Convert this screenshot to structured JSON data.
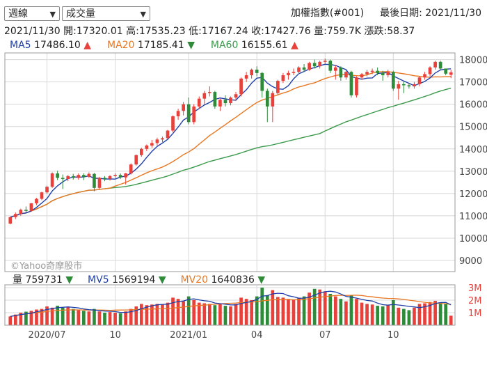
{
  "controls": {
    "period_select": "週線",
    "indicator_select": "成交量"
  },
  "header": {
    "index_name": "加權指數(#001)",
    "last_date_label": "最後日期:",
    "last_date": "2021/11/30"
  },
  "quote": {
    "date": "2021/11/30",
    "open_label": "開:",
    "open": "17320.01",
    "high_label": "高:",
    "high": "17535.23",
    "low_label": "低:",
    "low": "17167.24",
    "close_label": "收:",
    "close": "17427.76",
    "vol_label": "量:",
    "vol": "759.7K",
    "change_label": "漲跌:",
    "change": "58.37"
  },
  "ma_legend": [
    {
      "label": "MA5",
      "value": "17486.10",
      "dir": "▲",
      "color": "#1f3fa8",
      "dir_color": "#e8403a"
    },
    {
      "label": "MA20",
      "value": "17185.41",
      "dir": "▼",
      "color": "#e87722",
      "dir_color": "#2e8b3a"
    },
    {
      "label": "MA60",
      "value": "16155.61",
      "dir": "▲",
      "color": "#3a9a4a",
      "dir_color": "#e8403a"
    }
  ],
  "vol_legend": [
    {
      "label": "量",
      "value": "759731",
      "dir": "▼",
      "color": "#222222",
      "dir_color": "#2e8b3a"
    },
    {
      "label": "MV5",
      "value": "1569194",
      "dir": "▼",
      "color": "#1f3fa8",
      "dir_color": "#2e8b3a"
    },
    {
      "label": "MV20",
      "value": "1640836",
      "dir": "▼",
      "color": "#e87722",
      "dir_color": "#2e8b3a"
    }
  ],
  "watermark": "©Yahoo奇摩股市",
  "colors": {
    "up": "#e8403a",
    "down": "#2e8b3a",
    "ma5": "#1f3fa8",
    "ma20": "#e87722",
    "ma60": "#3a9a4a",
    "grid": "#d8d8d8"
  },
  "chart_data": {
    "type": "candlestick",
    "price_axis": {
      "ticks": [
        9000,
        10000,
        11000,
        12000,
        13000,
        14000,
        15000,
        16000,
        17000,
        18000
      ],
      "range": [
        8500,
        18300
      ]
    },
    "volume_axis": {
      "ticks": [
        1000000,
        2000000,
        3000000
      ],
      "tick_labels": [
        "1M",
        "2M",
        "3M"
      ],
      "range": [
        0,
        3000000
      ]
    },
    "x_labels": [
      "2020/07",
      "10",
      "2021/01",
      "04",
      "07",
      "10"
    ],
    "x_label_week_index": [
      7,
      20,
      34,
      47,
      60,
      73
    ],
    "weeks": [
      {
        "o": 10650,
        "h": 10950,
        "l": 10620,
        "c": 10940,
        "v": 700000
      },
      {
        "o": 10940,
        "h": 11150,
        "l": 10850,
        "c": 11080,
        "v": 850000
      },
      {
        "o": 11080,
        "h": 11320,
        "l": 11000,
        "c": 11270,
        "v": 1000000
      },
      {
        "o": 11270,
        "h": 11420,
        "l": 11150,
        "c": 11220,
        "v": 1080000
      },
      {
        "o": 11220,
        "h": 11580,
        "l": 11180,
        "c": 11560,
        "v": 1150000
      },
      {
        "o": 11560,
        "h": 11800,
        "l": 11480,
        "c": 11760,
        "v": 1250000
      },
      {
        "o": 11760,
        "h": 12080,
        "l": 11700,
        "c": 12050,
        "v": 1300000
      },
      {
        "o": 12050,
        "h": 12350,
        "l": 11980,
        "c": 12300,
        "v": 1500000
      },
      {
        "o": 12300,
        "h": 12950,
        "l": 12250,
        "c": 12900,
        "v": 1400000
      },
      {
        "o": 12900,
        "h": 13020,
        "l": 12600,
        "c": 12700,
        "v": 1550000
      },
      {
        "o": 12700,
        "h": 12850,
        "l": 12200,
        "c": 12650,
        "v": 1400000
      },
      {
        "o": 12650,
        "h": 12830,
        "l": 12550,
        "c": 12780,
        "v": 1450000
      },
      {
        "o": 12780,
        "h": 12880,
        "l": 12620,
        "c": 12700,
        "v": 1300000
      },
      {
        "o": 12700,
        "h": 12900,
        "l": 12620,
        "c": 12830,
        "v": 1200000
      },
      {
        "o": 12830,
        "h": 12900,
        "l": 12600,
        "c": 12750,
        "v": 1150000
      },
      {
        "o": 12750,
        "h": 12950,
        "l": 12700,
        "c": 12880,
        "v": 1100000
      },
      {
        "o": 12880,
        "h": 12920,
        "l": 12100,
        "c": 12250,
        "v": 1300000
      },
      {
        "o": 12250,
        "h": 12750,
        "l": 12180,
        "c": 12700,
        "v": 1100000
      },
      {
        "o": 12700,
        "h": 12780,
        "l": 12550,
        "c": 12660,
        "v": 1000000
      },
      {
        "o": 12660,
        "h": 12820,
        "l": 12580,
        "c": 12780,
        "v": 1050000
      },
      {
        "o": 12780,
        "h": 12900,
        "l": 12700,
        "c": 12830,
        "v": 1000000
      },
      {
        "o": 12830,
        "h": 12900,
        "l": 12650,
        "c": 12720,
        "v": 950000
      },
      {
        "o": 12720,
        "h": 12920,
        "l": 12400,
        "c": 12900,
        "v": 1100000
      },
      {
        "o": 12900,
        "h": 13350,
        "l": 12850,
        "c": 13300,
        "v": 1300000
      },
      {
        "o": 13300,
        "h": 13750,
        "l": 13250,
        "c": 13720,
        "v": 1500000
      },
      {
        "o": 13720,
        "h": 14050,
        "l": 13650,
        "c": 14000,
        "v": 1700000
      },
      {
        "o": 14000,
        "h": 14200,
        "l": 13900,
        "c": 14150,
        "v": 1600000
      },
      {
        "o": 14150,
        "h": 14400,
        "l": 14050,
        "c": 14260,
        "v": 1650000
      },
      {
        "o": 14260,
        "h": 14500,
        "l": 14150,
        "c": 14420,
        "v": 1700000
      },
      {
        "o": 14420,
        "h": 14550,
        "l": 14300,
        "c": 14480,
        "v": 1650000
      },
      {
        "o": 14480,
        "h": 14850,
        "l": 14450,
        "c": 14820,
        "v": 1800000
      },
      {
        "o": 14820,
        "h": 15500,
        "l": 14750,
        "c": 15460,
        "v": 2200000
      },
      {
        "o": 15460,
        "h": 15800,
        "l": 15300,
        "c": 15700,
        "v": 2100000
      },
      {
        "o": 15700,
        "h": 16100,
        "l": 15500,
        "c": 16000,
        "v": 1900000
      },
      {
        "o": 16000,
        "h": 16300,
        "l": 15100,
        "c": 15200,
        "v": 2300000
      },
      {
        "o": 15200,
        "h": 16000,
        "l": 15100,
        "c": 15900,
        "v": 2000000
      },
      {
        "o": 15900,
        "h": 16350,
        "l": 15800,
        "c": 16250,
        "v": 1800000
      },
      {
        "o": 16250,
        "h": 16600,
        "l": 16000,
        "c": 16500,
        "v": 1750000
      },
      {
        "o": 16500,
        "h": 16800,
        "l": 16350,
        "c": 16550,
        "v": 1700000
      },
      {
        "o": 16550,
        "h": 16600,
        "l": 15800,
        "c": 15900,
        "v": 1600000
      },
      {
        "o": 15900,
        "h": 16250,
        "l": 15700,
        "c": 16200,
        "v": 1750000
      },
      {
        "o": 16200,
        "h": 16400,
        "l": 15900,
        "c": 16050,
        "v": 1550000
      },
      {
        "o": 16050,
        "h": 16350,
        "l": 15950,
        "c": 16300,
        "v": 1500000
      },
      {
        "o": 16300,
        "h": 16550,
        "l": 16150,
        "c": 16450,
        "v": 1700000
      },
      {
        "o": 16450,
        "h": 17200,
        "l": 16350,
        "c": 17150,
        "v": 2200000
      },
      {
        "o": 17150,
        "h": 17450,
        "l": 17000,
        "c": 17300,
        "v": 2100000
      },
      {
        "o": 17300,
        "h": 17600,
        "l": 17150,
        "c": 17550,
        "v": 2000000
      },
      {
        "o": 17550,
        "h": 17700,
        "l": 17250,
        "c": 17400,
        "v": 2300000
      },
      {
        "o": 17400,
        "h": 17450,
        "l": 16300,
        "c": 16600,
        "v": 3000000
      },
      {
        "o": 16600,
        "h": 16700,
        "l": 15200,
        "c": 15900,
        "v": 2400000
      },
      {
        "o": 15900,
        "h": 16600,
        "l": 15200,
        "c": 16500,
        "v": 2800000
      },
      {
        "o": 16500,
        "h": 17100,
        "l": 16400,
        "c": 17050,
        "v": 2250000
      },
      {
        "o": 17050,
        "h": 17400,
        "l": 16950,
        "c": 17300,
        "v": 2200000
      },
      {
        "o": 17300,
        "h": 17500,
        "l": 17100,
        "c": 17400,
        "v": 2100000
      },
      {
        "o": 17400,
        "h": 17600,
        "l": 17300,
        "c": 17450,
        "v": 2000000
      },
      {
        "o": 17450,
        "h": 17700,
        "l": 17350,
        "c": 17650,
        "v": 2200000
      },
      {
        "o": 17650,
        "h": 17800,
        "l": 17450,
        "c": 17550,
        "v": 2300000
      },
      {
        "o": 17550,
        "h": 17900,
        "l": 17500,
        "c": 17850,
        "v": 2600000
      },
      {
        "o": 17850,
        "h": 18000,
        "l": 17600,
        "c": 17700,
        "v": 2900000
      },
      {
        "o": 17700,
        "h": 17950,
        "l": 17600,
        "c": 17900,
        "v": 2850000
      },
      {
        "o": 17900,
        "h": 18050,
        "l": 17800,
        "c": 17950,
        "v": 2700000
      },
      {
        "o": 17950,
        "h": 18000,
        "l": 17400,
        "c": 17500,
        "v": 2500000
      },
      {
        "o": 17500,
        "h": 17750,
        "l": 17100,
        "c": 17650,
        "v": 2300000
      },
      {
        "o": 17650,
        "h": 17700,
        "l": 17050,
        "c": 17200,
        "v": 2100000
      },
      {
        "o": 17200,
        "h": 17500,
        "l": 17100,
        "c": 17450,
        "v": 1900000
      },
      {
        "o": 17450,
        "h": 17500,
        "l": 16300,
        "c": 16400,
        "v": 2400000
      },
      {
        "o": 16400,
        "h": 17250,
        "l": 16300,
        "c": 17200,
        "v": 2100000
      },
      {
        "o": 17200,
        "h": 17400,
        "l": 17100,
        "c": 17350,
        "v": 1800000
      },
      {
        "o": 17350,
        "h": 17550,
        "l": 17250,
        "c": 17450,
        "v": 1700000
      },
      {
        "o": 17450,
        "h": 17600,
        "l": 17350,
        "c": 17500,
        "v": 1650000
      },
      {
        "o": 17500,
        "h": 17650,
        "l": 17300,
        "c": 17400,
        "v": 1550000
      },
      {
        "o": 17400,
        "h": 17500,
        "l": 17050,
        "c": 17300,
        "v": 1500000
      },
      {
        "o": 17300,
        "h": 17550,
        "l": 17200,
        "c": 17450,
        "v": 1600000
      },
      {
        "o": 17450,
        "h": 17500,
        "l": 16600,
        "c": 16700,
        "v": 2000000
      },
      {
        "o": 16700,
        "h": 17050,
        "l": 16200,
        "c": 16900,
        "v": 1400000
      },
      {
        "o": 16900,
        "h": 17000,
        "l": 16500,
        "c": 16850,
        "v": 1300000
      },
      {
        "o": 16850,
        "h": 16950,
        "l": 16700,
        "c": 16800,
        "v": 1200000
      },
      {
        "o": 16800,
        "h": 17000,
        "l": 16700,
        "c": 16900,
        "v": 1400000
      },
      {
        "o": 16900,
        "h": 17250,
        "l": 16800,
        "c": 17200,
        "v": 1700000
      },
      {
        "o": 17200,
        "h": 17450,
        "l": 17100,
        "c": 17350,
        "v": 1750000
      },
      {
        "o": 17350,
        "h": 17700,
        "l": 17250,
        "c": 17650,
        "v": 1850000
      },
      {
        "o": 17650,
        "h": 17950,
        "l": 17550,
        "c": 17900,
        "v": 1950000
      },
      {
        "o": 17900,
        "h": 17950,
        "l": 17550,
        "c": 17600,
        "v": 1800000
      },
      {
        "o": 17600,
        "h": 17550,
        "l": 17300,
        "c": 17370,
        "v": 1750000
      },
      {
        "o": 17320,
        "h": 17535,
        "l": 17167,
        "c": 17428,
        "v": 760000
      }
    ]
  }
}
